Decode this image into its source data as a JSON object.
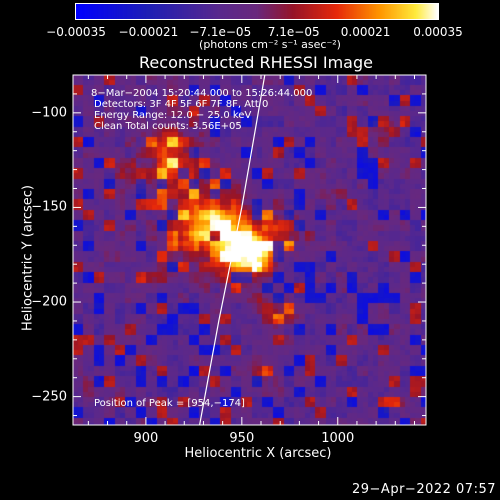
{
  "chart_data": {
    "type": "heatmap",
    "title": "Reconstructed RHESSI Image",
    "xlabel": "Heliocentric X (arcsec)",
    "ylabel": "Heliocentric Y (arcsec)",
    "xlim": [
      862,
      1046
    ],
    "ylim": [
      -265,
      -80
    ],
    "xticks": [
      {
        "value": 900,
        "label": "900"
      },
      {
        "value": 950,
        "label": "950"
      },
      {
        "value": 1000,
        "label": "1000"
      }
    ],
    "yticks": [
      {
        "value": -100,
        "label": "−100"
      },
      {
        "value": -150,
        "label": "−150"
      },
      {
        "value": -200,
        "label": "−200"
      },
      {
        "value": -250,
        "label": "−250"
      }
    ],
    "colorbar": {
      "range": [
        -0.00035,
        0.00035
      ],
      "ticks": [
        {
          "value": -0.00035,
          "label": "−0.00035"
        },
        {
          "value": -0.00021,
          "label": "−0.00021"
        },
        {
          "value": -7.1e-05,
          "label": "−7.1e−05"
        },
        {
          "value": 7.1e-05,
          "label": "7.1e−05"
        },
        {
          "value": 0.00021,
          "label": "0.00021"
        },
        {
          "value": 0.00035,
          "label": "0.00035"
        }
      ],
      "unit_text": "(photons cm⁻² s⁻¹ asec⁻²)"
    },
    "annotations": [
      "8−Mar−2004 15:20:44.000 to 15:26:44.000",
      "Detectors: 3F 4F 5F 6F 7F 8F, Att 0",
      "Energy Range: 12.0 − 25.0 keV",
      "Clean     Total counts: 3.56E+05"
    ],
    "peak_label": "Position of Peak = [954,−174]",
    "peak": [
      954,
      -174
    ],
    "limb_curve": [
      [
        962,
        -80
      ],
      [
        950,
        -150
      ],
      [
        938,
        -210
      ],
      [
        928,
        -265
      ]
    ],
    "sources": [
      {
        "x": 954,
        "y": -174,
        "amp": 1.0,
        "sx": 9,
        "sy": 9
      },
      {
        "x": 935,
        "y": -160,
        "amp": 0.85,
        "sx": 13,
        "sy": 13
      },
      {
        "x": 915,
        "y": -125,
        "amp": 0.55,
        "sx": 9,
        "sy": 13
      },
      {
        "x": 895,
        "y": -135,
        "amp": 0.3,
        "sx": 7,
        "sy": 6
      },
      {
        "x": 972,
        "y": -162,
        "amp": 0.4,
        "sx": 8,
        "sy": 8
      },
      {
        "x": 1025,
        "y": -108,
        "amp": 0.3,
        "sx": 5,
        "sy": 5
      },
      {
        "x": 968,
        "y": -205,
        "amp": 0.28,
        "sx": 9,
        "sy": 6
      },
      {
        "x": 960,
        "y": -238,
        "amp": 0.2,
        "sx": 5,
        "sy": 5
      },
      {
        "x": 905,
        "y": -188,
        "amp": 0.15,
        "sx": 6,
        "sy": 6
      },
      {
        "x": 1000,
        "y": -140,
        "amp": 0.1,
        "sx": 6,
        "sy": 5
      },
      {
        "x": 1030,
        "y": -255,
        "amp": 0.18,
        "sx": 4,
        "sy": 4
      },
      {
        "x": 870,
        "y": -250,
        "amp": 0.12,
        "sx": 6,
        "sy": 6
      }
    ]
  },
  "timestamp": "29−Apr−2022 07:57"
}
